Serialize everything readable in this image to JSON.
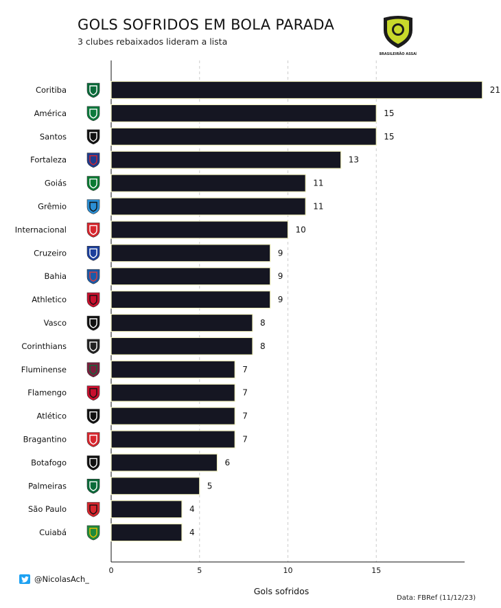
{
  "title": "GOLS SOFRIDOS EM BOLA PARADA",
  "subtitle": "3 clubes rebaixados lideram a lista",
  "league_logo_text": "BRASILEIRÃO ASSAÍ",
  "footer": {
    "handle": "@NicolasAch_",
    "source": "Data: FBRef (11/12/23)"
  },
  "chart_data": {
    "type": "bar",
    "orientation": "horizontal",
    "xlabel": "Gols sofridos",
    "xlim": [
      0,
      20
    ],
    "xticks": [
      0,
      5,
      10,
      15
    ],
    "grid": true,
    "colors": {
      "bar": "#151622",
      "bar_edge": "#f2f2c0",
      "grid": "#cccccc"
    },
    "categories": [
      "Coritiba",
      "América",
      "Santos",
      "Fortaleza",
      "Goiás",
      "Grêmio",
      "Internacional",
      "Cruzeiro",
      "Bahia",
      "Athletico",
      "Vasco",
      "Corinthians",
      "Fluminense",
      "Flamengo",
      "Atlético",
      "Bragantino",
      "Botafogo",
      "Palmeiras",
      "São Paulo",
      "Cuiabá"
    ],
    "values": [
      21,
      15,
      15,
      13,
      11,
      11,
      10,
      9,
      9,
      9,
      8,
      8,
      7,
      7,
      7,
      7,
      6,
      5,
      4,
      4
    ],
    "crest_colors": [
      [
        "#0b6b3a",
        "#ffffff"
      ],
      [
        "#0c7a3c",
        "#ffffff"
      ],
      [
        "#111111",
        "#ffffff"
      ],
      [
        "#1f3c8c",
        "#d7262e"
      ],
      [
        "#0a7a32",
        "#ffffff"
      ],
      [
        "#2b8fd4",
        "#111111"
      ],
      [
        "#d7262e",
        "#ffffff"
      ],
      [
        "#1b3f9c",
        "#ffffff"
      ],
      [
        "#1b5aa8",
        "#e23a3a"
      ],
      [
        "#c8102e",
        "#111111"
      ],
      [
        "#111111",
        "#ffffff"
      ],
      [
        "#222222",
        "#ffffff"
      ],
      [
        "#7a1f3d",
        "#0b6b3a"
      ],
      [
        "#c8102e",
        "#111111"
      ],
      [
        "#111111",
        "#ffffff"
      ],
      [
        "#d7262e",
        "#ffffff"
      ],
      [
        "#111111",
        "#ffffff"
      ],
      [
        "#0b6b3a",
        "#ffffff"
      ],
      [
        "#d7262e",
        "#111111"
      ],
      [
        "#1f8a3c",
        "#f2c200"
      ]
    ]
  }
}
